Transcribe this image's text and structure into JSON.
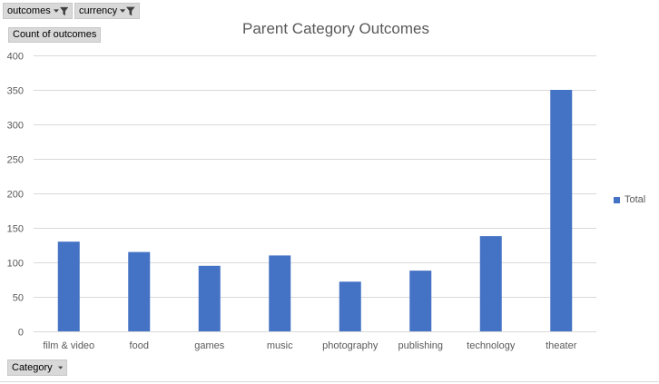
{
  "filters": {
    "outcomes_label": "outcomes",
    "currency_label": "currency",
    "value_field_label": "Count of outcomes",
    "axis_field_label": "Category"
  },
  "colors": {
    "bar": "#4472c4",
    "grid": "#d9d9d9",
    "field_bg": "#d9d9d9"
  },
  "icons": {
    "filter": "filter-icon",
    "dropdown": "chevron-down-icon"
  },
  "chart_data": {
    "type": "bar",
    "title": "Parent Category Outcomes",
    "categories": [
      "film & video",
      "food",
      "games",
      "music",
      "photography",
      "publishing",
      "technology",
      "theater"
    ],
    "series": [
      {
        "name": "Total",
        "values": [
          130,
          115,
          95,
          110,
          72,
          88,
          138,
          350
        ]
      }
    ],
    "ylim": [
      0,
      400
    ],
    "yticks": [
      0,
      50,
      100,
      150,
      200,
      250,
      300,
      350,
      400
    ],
    "grid": true,
    "legend": "right"
  }
}
